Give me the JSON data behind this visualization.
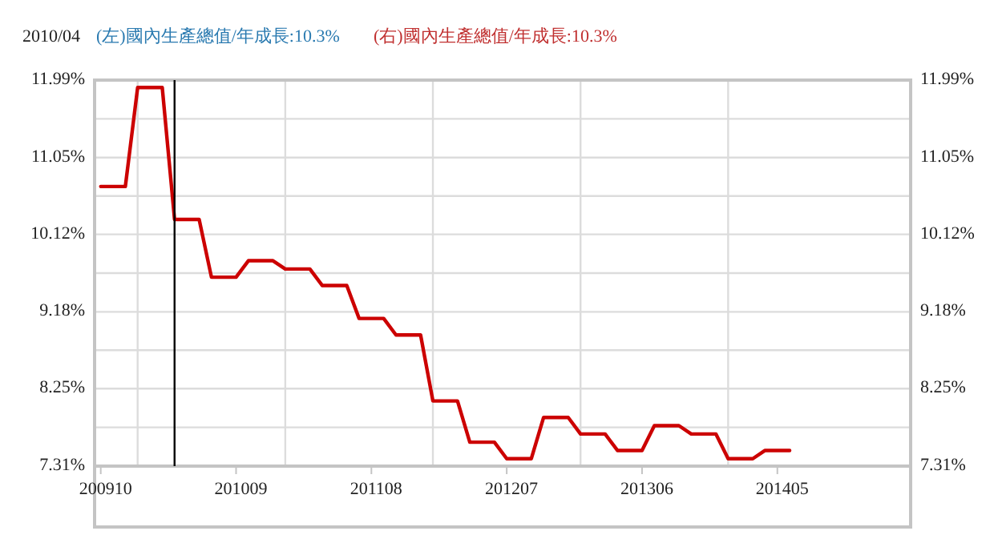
{
  "chart_data": {
    "type": "line",
    "title": "2010/04",
    "annotations": [
      "(左)國內生產總值/年成長:10.3%",
      "(右)國內生產總值/年成長:10.3%"
    ],
    "x": [
      "2009-10",
      "2009-11",
      "2009-12",
      "2010-01",
      "2010-02",
      "2010-03",
      "2010-04",
      "2010-05",
      "2010-06",
      "2010-07",
      "2010-08",
      "2010-09",
      "2010-10",
      "2010-11",
      "2010-12",
      "2011-01",
      "2011-02",
      "2011-03",
      "2011-04",
      "2011-05",
      "2011-06",
      "2011-07",
      "2011-08",
      "2011-09",
      "2011-10",
      "2011-11",
      "2011-12",
      "2012-01",
      "2012-02",
      "2012-03",
      "2012-04",
      "2012-05",
      "2012-06",
      "2012-07",
      "2012-08",
      "2012-09",
      "2012-10",
      "2012-11",
      "2012-12",
      "2013-01",
      "2013-02",
      "2013-03",
      "2013-04",
      "2013-05",
      "2013-06",
      "2013-07",
      "2013-08",
      "2013-09",
      "2013-10",
      "2013-11",
      "2013-12",
      "2014-01",
      "2014-02",
      "2014-03",
      "2014-04",
      "2014-05",
      "2014-06"
    ],
    "series": [
      {
        "color": "#cc0000",
        "values": [
          10.7,
          10.7,
          10.7,
          11.9,
          11.9,
          11.9,
          10.3,
          10.3,
          10.3,
          9.6,
          9.6,
          9.6,
          9.8,
          9.8,
          9.8,
          9.7,
          9.7,
          9.7,
          9.5,
          9.5,
          9.5,
          9.1,
          9.1,
          9.1,
          8.9,
          8.9,
          8.9,
          8.1,
          8.1,
          8.1,
          7.6,
          7.6,
          7.6,
          7.4,
          7.4,
          7.4,
          7.9,
          7.9,
          7.9,
          7.7,
          7.7,
          7.7,
          7.5,
          7.5,
          7.5,
          7.8,
          7.8,
          7.8,
          7.7,
          7.7,
          7.7,
          7.4,
          7.4,
          7.4,
          7.5,
          7.5,
          7.5
        ]
      }
    ],
    "xlim": [
      "2009-09-16",
      "2015-03-26"
    ],
    "xticks": [
      {
        "value": "2009-10",
        "label": "200910"
      },
      {
        "value": "2010-01",
        "label": null
      },
      {
        "value": "2010-09",
        "label": "201009"
      },
      {
        "value": "2011-01",
        "label": null
      },
      {
        "value": "2011-08",
        "label": "201108"
      },
      {
        "value": "2012-01",
        "label": null
      },
      {
        "value": "2012-07",
        "label": "201207"
      },
      {
        "value": "2013-01",
        "label": null
      },
      {
        "value": "2013-06",
        "label": "201306"
      },
      {
        "value": "2014-01",
        "label": null
      },
      {
        "value": "2014-05",
        "label": "201405"
      }
    ],
    "ylim": [
      7.31,
      11.99
    ],
    "yticks": [
      {
        "value": 7.31,
        "label": "7.31%"
      },
      {
        "value": 7.78,
        "label": null
      },
      {
        "value": 8.25,
        "label": "8.25%"
      },
      {
        "value": 8.715,
        "label": null
      },
      {
        "value": 9.18,
        "label": "9.18%"
      },
      {
        "value": 9.65,
        "label": null
      },
      {
        "value": 10.12,
        "label": "10.12%"
      },
      {
        "value": 10.585,
        "label": null
      },
      {
        "value": 11.05,
        "label": "11.05%"
      },
      {
        "value": 11.52,
        "label": null
      },
      {
        "value": 11.99,
        "label": "11.99%"
      }
    ],
    "y2lim": [
      7.31,
      11.99
    ],
    "y2ticks": [
      {
        "value": 7.31,
        "label": "7.31%"
      },
      {
        "value": 8.25,
        "label": "8.25%"
      },
      {
        "value": 9.18,
        "label": "9.18%"
      },
      {
        "value": 10.12,
        "label": "10.12%"
      },
      {
        "value": 11.05,
        "label": "11.05%"
      },
      {
        "value": 11.99,
        "label": "11.99%"
      }
    ],
    "ref_lines": [
      {
        "axis": "x",
        "value": "2010-04",
        "color": "#000000"
      }
    ],
    "grid": true
  }
}
